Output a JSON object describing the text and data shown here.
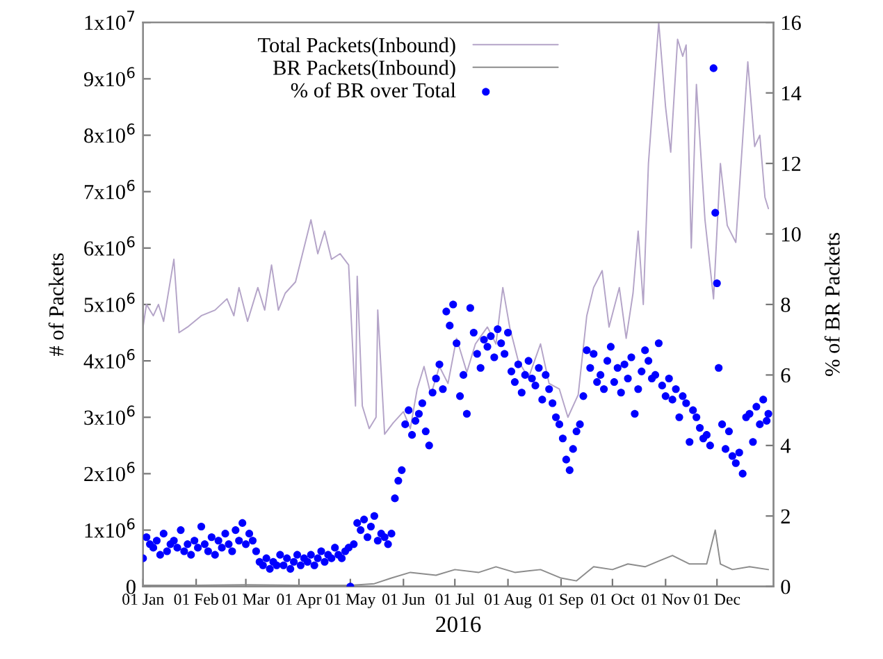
{
  "chart_data": {
    "type": "line",
    "xlabel": "2016",
    "ylabel": "# of Packets",
    "y2label": "% of BR Packets",
    "xlim": [
      "2016-01-01",
      "2017-01-03"
    ],
    "xticks": [
      {
        "value": "2016-01-01",
        "label": "01 Jan"
      },
      {
        "value": "2016-02-01",
        "label": "01 Feb"
      },
      {
        "value": "2016-03-01",
        "label": "01 Mar"
      },
      {
        "value": "2016-04-01",
        "label": "01 Apr"
      },
      {
        "value": "2016-05-01",
        "label": "01 May"
      },
      {
        "value": "2016-06-01",
        "label": "01 Jun"
      },
      {
        "value": "2016-07-01",
        "label": "01 Jul"
      },
      {
        "value": "2016-08-01",
        "label": "01 Aug"
      },
      {
        "value": "2016-09-01",
        "label": "01 Sep"
      },
      {
        "value": "2016-10-01",
        "label": "01 Oct"
      },
      {
        "value": "2016-11-01",
        "label": "01 Nov"
      },
      {
        "value": "2016-12-01",
        "label": "01 Dec"
      }
    ],
    "ylim": [
      0,
      10000000
    ],
    "yticks": [
      0,
      {
        "value": 1000000,
        "label": "1x10$^{6}$"
      },
      {
        "value": 2000000,
        "label": "2x10$^{6}$"
      },
      {
        "value": 3000000,
        "label": "3x10$^{6}$"
      },
      {
        "value": 4000000,
        "label": "4x10$^{6}$"
      },
      {
        "value": 5000000,
        "label": "5x10$^{6}$"
      },
      {
        "value": 6000000,
        "label": "6x10$^{6}$"
      },
      {
        "value": 7000000,
        "label": "7x10$^{6}$"
      },
      {
        "value": 8000000,
        "label": "8x10$^{6}$"
      },
      {
        "value": 9000000,
        "label": "9x10$^{6}$"
      },
      {
        "value": 10000000,
        "label": "1x10$^{7}$"
      }
    ],
    "y2lim": [
      0,
      16
    ],
    "y2ticks": [
      0,
      2,
      4,
      6,
      8,
      10,
      12,
      14,
      16
    ],
    "grid": false,
    "legend": "top",
    "series": [
      {
        "name": "Total Packets(Inbound)",
        "color": "#b4a4c8",
        "x": [
          "2016-01-01",
          "2016-01-03",
          "2016-01-07",
          "2016-01-10",
          "2016-01-13",
          "2016-01-19",
          "2016-01-22",
          "2016-01-27",
          "2016-02-04",
          "2016-02-12",
          "2016-02-19",
          "2016-02-23",
          "2016-02-26",
          "2016-03-02",
          "2016-03-08",
          "2016-03-12",
          "2016-03-16",
          "2016-03-20",
          "2016-03-24",
          "2016-03-30",
          "2016-04-08",
          "2016-04-12",
          "2016-04-16",
          "2016-04-20",
          "2016-04-25",
          "2016-04-30",
          "2016-05-04",
          "2016-05-05",
          "2016-05-08",
          "2016-05-12",
          "2016-05-16",
          "2016-05-17",
          "2016-05-21",
          "2016-05-26",
          "2016-06-01",
          "2016-06-05",
          "2016-06-09",
          "2016-06-13",
          "2016-06-17",
          "2016-06-22",
          "2016-06-27",
          "2016-07-02",
          "2016-07-08",
          "2016-07-13",
          "2016-07-20",
          "2016-07-25",
          "2016-07-29",
          "2016-08-02",
          "2016-08-07",
          "2016-08-13",
          "2016-08-20",
          "2016-08-25",
          "2016-08-31",
          "2016-09-05",
          "2016-09-11",
          "2016-09-16",
          "2016-09-20",
          "2016-09-25",
          "2016-09-29",
          "2016-10-05",
          "2016-10-09",
          "2016-10-13",
          "2016-10-16",
          "2016-10-19",
          "2016-10-22",
          "2016-10-28",
          "2016-11-01",
          "2016-11-04",
          "2016-11-08",
          "2016-11-11",
          "2016-11-13",
          "2016-11-16",
          "2016-11-19",
          "2016-11-24",
          "2016-11-29",
          "2016-12-03",
          "2016-12-07",
          "2016-12-12",
          "2016-12-19",
          "2016-12-23",
          "2016-12-26",
          "2016-12-29",
          "2016-12-31"
        ],
        "values": [
          4600000,
          5000000,
          4800000,
          5000000,
          4700000,
          5800000,
          4500000,
          4600000,
          4800000,
          4900000,
          5100000,
          4800000,
          5300000,
          4700000,
          5300000,
          4900000,
          5700000,
          4900000,
          5200000,
          5400000,
          6500000,
          5900000,
          6300000,
          5800000,
          5900000,
          5700000,
          3200000,
          5500000,
          3200000,
          2800000,
          3000000,
          4900000,
          2700000,
          2900000,
          3100000,
          2800000,
          3500000,
          3900000,
          3400000,
          3900000,
          3600000,
          4400000,
          3800000,
          4300000,
          4600000,
          4300000,
          5300000,
          4600000,
          4000000,
          3700000,
          4300000,
          3600000,
          3500000,
          3000000,
          3400000,
          4800000,
          5300000,
          5600000,
          4600000,
          5300000,
          4400000,
          5200000,
          6300000,
          5000000,
          7500000,
          10000000,
          8500000,
          7700000,
          9700000,
          9400000,
          9600000,
          6000000,
          8900000,
          6500000,
          5100000,
          7500000,
          6400000,
          6100000,
          9300000,
          7800000,
          8000000,
          6900000,
          6700000
        ]
      },
      {
        "name": "BR Packets(Inbound)",
        "color": "#8c8c8c",
        "x": [
          "2016-01-01",
          "2016-02-01",
          "2016-03-01",
          "2016-04-01",
          "2016-05-01",
          "2016-05-15",
          "2016-05-25",
          "2016-06-05",
          "2016-06-20",
          "2016-07-01",
          "2016-07-15",
          "2016-07-25",
          "2016-08-05",
          "2016-08-20",
          "2016-09-01",
          "2016-09-10",
          "2016-09-20",
          "2016-10-01",
          "2016-10-10",
          "2016-10-20",
          "2016-10-28",
          "2016-11-05",
          "2016-11-15",
          "2016-11-25",
          "2016-11-30",
          "2016-12-03",
          "2016-12-10",
          "2016-12-20",
          "2016-12-31"
        ],
        "values": [
          20000,
          20000,
          30000,
          20000,
          20000,
          50000,
          150000,
          250000,
          200000,
          300000,
          250000,
          350000,
          250000,
          300000,
          150000,
          100000,
          350000,
          300000,
          400000,
          350000,
          450000,
          550000,
          400000,
          400000,
          1000000,
          400000,
          300000,
          350000,
          300000
        ]
      },
      {
        "name": "% of BR over Total",
        "type": "scatter",
        "axis": "y2",
        "color": "#0000ff",
        "marker": "circle",
        "x": [
          "2016-01-01",
          "2016-01-03",
          "2016-01-05",
          "2016-01-07",
          "2016-01-09",
          "2016-01-11",
          "2016-01-13",
          "2016-01-15",
          "2016-01-17",
          "2016-01-19",
          "2016-01-21",
          "2016-01-23",
          "2016-01-25",
          "2016-01-27",
          "2016-01-29",
          "2016-01-31",
          "2016-02-02",
          "2016-02-04",
          "2016-02-06",
          "2016-02-08",
          "2016-02-10",
          "2016-02-12",
          "2016-02-14",
          "2016-02-16",
          "2016-02-18",
          "2016-02-20",
          "2016-02-22",
          "2016-02-24",
          "2016-02-26",
          "2016-02-28",
          "2016-03-01",
          "2016-03-03",
          "2016-03-05",
          "2016-03-07",
          "2016-03-09",
          "2016-03-11",
          "2016-03-13",
          "2016-03-15",
          "2016-03-17",
          "2016-03-19",
          "2016-03-21",
          "2016-03-23",
          "2016-03-25",
          "2016-03-27",
          "2016-03-29",
          "2016-03-31",
          "2016-04-02",
          "2016-04-04",
          "2016-04-06",
          "2016-04-08",
          "2016-04-10",
          "2016-04-12",
          "2016-04-14",
          "2016-04-16",
          "2016-04-18",
          "2016-04-20",
          "2016-04-22",
          "2016-04-24",
          "2016-04-26",
          "2016-04-28",
          "2016-04-30",
          "2016-05-01",
          "2016-05-03",
          "2016-05-05",
          "2016-05-07",
          "2016-05-09",
          "2016-05-11",
          "2016-05-13",
          "2016-05-15",
          "2016-05-17",
          "2016-05-19",
          "2016-05-21",
          "2016-05-23",
          "2016-05-25",
          "2016-05-27",
          "2016-05-29",
          "2016-05-31",
          "2016-06-02",
          "2016-06-04",
          "2016-06-06",
          "2016-06-08",
          "2016-06-10",
          "2016-06-12",
          "2016-06-14",
          "2016-06-16",
          "2016-06-18",
          "2016-06-20",
          "2016-06-22",
          "2016-06-24",
          "2016-06-26",
          "2016-06-28",
          "2016-06-30",
          "2016-07-02",
          "2016-07-04",
          "2016-07-06",
          "2016-07-08",
          "2016-07-10",
          "2016-07-12",
          "2016-07-14",
          "2016-07-16",
          "2016-07-18",
          "2016-07-20",
          "2016-07-22",
          "2016-07-24",
          "2016-07-26",
          "2016-07-28",
          "2016-07-30",
          "2016-08-01",
          "2016-08-03",
          "2016-08-05",
          "2016-08-07",
          "2016-08-09",
          "2016-08-11",
          "2016-08-13",
          "2016-08-15",
          "2016-08-17",
          "2016-08-19",
          "2016-08-21",
          "2016-08-23",
          "2016-08-25",
          "2016-08-27",
          "2016-08-29",
          "2016-08-31",
          "2016-09-02",
          "2016-09-04",
          "2016-09-06",
          "2016-09-08",
          "2016-09-10",
          "2016-09-12",
          "2016-09-14",
          "2016-09-16",
          "2016-09-18",
          "2016-09-20",
          "2016-09-22",
          "2016-09-24",
          "2016-09-26",
          "2016-09-28",
          "2016-09-30",
          "2016-10-02",
          "2016-10-04",
          "2016-10-06",
          "2016-10-08",
          "2016-10-10",
          "2016-10-12",
          "2016-10-14",
          "2016-10-16",
          "2016-10-18",
          "2016-10-20",
          "2016-10-22",
          "2016-10-24",
          "2016-10-26",
          "2016-10-28",
          "2016-10-30",
          "2016-11-01",
          "2016-11-03",
          "2016-11-05",
          "2016-11-07",
          "2016-11-09",
          "2016-11-11",
          "2016-11-13",
          "2016-11-15",
          "2016-11-17",
          "2016-11-19",
          "2016-11-21",
          "2016-11-23",
          "2016-11-25",
          "2016-11-27",
          "2016-11-29",
          "2016-11-30",
          "2016-12-01",
          "2016-12-02",
          "2016-12-04",
          "2016-12-06",
          "2016-12-08",
          "2016-12-10",
          "2016-12-12",
          "2016-12-14",
          "2016-12-16",
          "2016-12-18",
          "2016-12-20",
          "2016-12-22",
          "2016-12-24",
          "2016-12-26",
          "2016-12-28",
          "2016-12-30",
          "2016-12-31"
        ],
        "values": [
          0.8,
          1.4,
          1.2,
          1.1,
          1.3,
          0.9,
          1.5,
          1.0,
          1.2,
          1.3,
          1.1,
          1.6,
          1.0,
          1.2,
          0.9,
          1.3,
          1.1,
          1.7,
          1.2,
          1.0,
          1.4,
          0.9,
          1.3,
          1.1,
          1.5,
          1.2,
          1.0,
          1.6,
          1.3,
          1.8,
          1.2,
          1.5,
          1.3,
          1.0,
          0.7,
          0.6,
          0.8,
          0.5,
          0.7,
          0.6,
          0.9,
          0.6,
          0.8,
          0.5,
          0.7,
          0.9,
          0.6,
          0.8,
          0.7,
          0.9,
          0.6,
          0.8,
          1.0,
          0.7,
          0.9,
          0.8,
          1.1,
          0.9,
          0.8,
          1.0,
          1.1,
          0.0,
          1.2,
          1.8,
          1.6,
          1.9,
          1.4,
          1.7,
          2.0,
          1.3,
          1.5,
          1.4,
          1.2,
          1.5,
          2.5,
          3.0,
          3.3,
          4.6,
          5.0,
          4.3,
          4.7,
          4.9,
          5.2,
          4.4,
          4.0,
          5.5,
          5.9,
          6.3,
          5.6,
          7.8,
          7.4,
          8.0,
          6.9,
          5.4,
          6.0,
          4.9,
          7.9,
          7.2,
          6.6,
          6.2,
          7.0,
          6.8,
          7.1,
          6.5,
          7.3,
          6.9,
          6.6,
          7.2,
          6.1,
          5.8,
          6.3,
          5.5,
          6.0,
          6.4,
          5.9,
          5.7,
          6.2,
          5.3,
          6.0,
          5.6,
          5.2,
          4.8,
          4.6,
          4.2,
          3.6,
          3.3,
          3.9,
          4.4,
          4.6,
          5.4,
          6.7,
          6.2,
          6.6,
          5.8,
          6.0,
          5.6,
          6.4,
          6.8,
          5.8,
          6.2,
          5.5,
          6.3,
          5.9,
          6.5,
          4.9,
          5.6,
          6.1,
          6.7,
          6.4,
          5.9,
          6.0,
          6.9,
          5.7,
          5.4,
          5.9,
          5.3,
          5.6,
          4.8,
          5.4,
          5.2,
          4.1,
          5.0,
          4.8,
          4.5,
          4.2,
          4.3,
          4.0,
          14.7,
          10.6,
          8.6,
          6.2,
          4.6,
          3.9,
          4.4,
          3.7,
          3.5,
          3.8,
          3.2,
          4.8,
          4.9,
          4.1,
          5.1,
          4.6,
          5.3,
          4.7,
          4.9
        ]
      }
    ]
  }
}
